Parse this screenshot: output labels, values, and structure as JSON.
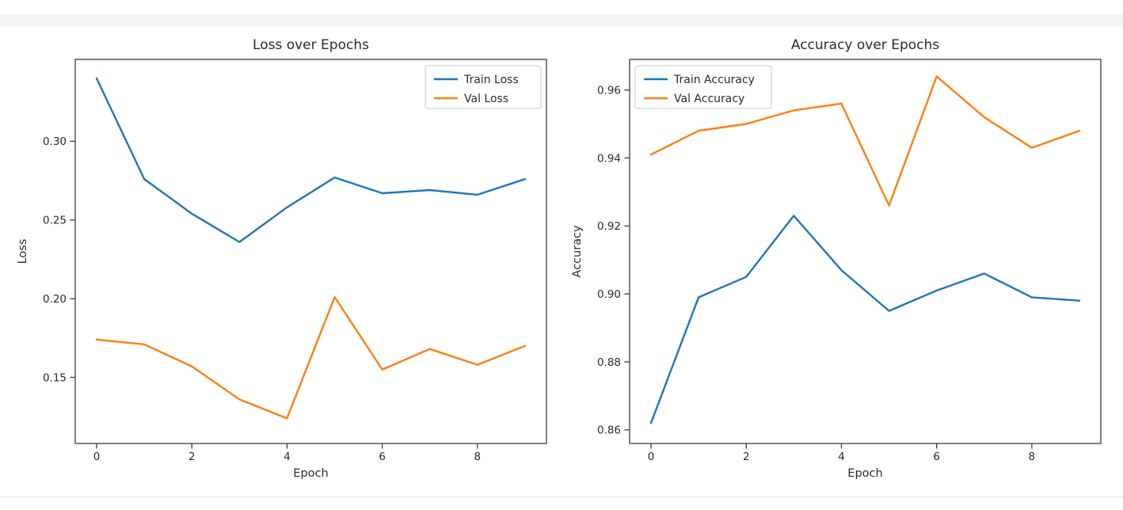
{
  "figure": {
    "background": "#ffffff",
    "top_strip_color": "#f4f5f6",
    "bottom_rule_color": "#e3e5e7",
    "spine_color": "#3c3c3c",
    "text_color": "#2b2b2b",
    "legend_border_color": "#cccccc"
  },
  "chart_data": [
    {
      "type": "line",
      "title": "Loss over Epochs",
      "xlabel": "Epoch",
      "ylabel": "Loss",
      "x": [
        0,
        1,
        2,
        3,
        4,
        5,
        6,
        7,
        8,
        9
      ],
      "series": [
        {
          "name": "Train Loss",
          "color": "#1f77b4",
          "values": [
            0.34,
            0.276,
            0.254,
            0.236,
            0.258,
            0.277,
            0.267,
            0.269,
            0.266,
            0.276
          ]
        },
        {
          "name": "Val Loss",
          "color": "#ff7f0e",
          "values": [
            0.174,
            0.171,
            0.157,
            0.136,
            0.124,
            0.201,
            0.155,
            0.168,
            0.158,
            0.17
          ]
        }
      ],
      "xticks": [
        {
          "v": 0,
          "label": "0"
        },
        {
          "v": 2,
          "label": "2"
        },
        {
          "v": 4,
          "label": "4"
        },
        {
          "v": 6,
          "label": "6"
        },
        {
          "v": 8,
          "label": "8"
        }
      ],
      "yticks": [
        {
          "v": 0.15,
          "label": "0.15"
        },
        {
          "v": 0.2,
          "label": "0.20"
        },
        {
          "v": 0.25,
          "label": "0.25"
        },
        {
          "v": 0.3,
          "label": "0.30"
        }
      ],
      "xlim": [
        -0.45,
        9.45
      ],
      "ylim": [
        0.108,
        0.352
      ],
      "grid": false,
      "legend": {
        "position": "top-right",
        "entries": [
          "Train Loss",
          "Val Loss"
        ]
      }
    },
    {
      "type": "line",
      "title": "Accuracy over Epochs",
      "xlabel": "Epoch",
      "ylabel": "Accuracy",
      "x": [
        0,
        1,
        2,
        3,
        4,
        5,
        6,
        7,
        8,
        9
      ],
      "series": [
        {
          "name": "Train Accuracy",
          "color": "#1f77b4",
          "values": [
            0.862,
            0.899,
            0.905,
            0.923,
            0.907,
            0.895,
            0.901,
            0.906,
            0.899,
            0.898
          ]
        },
        {
          "name": "Val Accuracy",
          "color": "#ff7f0e",
          "values": [
            0.941,
            0.948,
            0.95,
            0.954,
            0.956,
            0.926,
            0.964,
            0.952,
            0.943,
            0.948
          ]
        }
      ],
      "xticks": [
        {
          "v": 0,
          "label": "0"
        },
        {
          "v": 2,
          "label": "2"
        },
        {
          "v": 4,
          "label": "4"
        },
        {
          "v": 6,
          "label": "6"
        },
        {
          "v": 8,
          "label": "8"
        }
      ],
      "yticks": [
        {
          "v": 0.86,
          "label": "0.86"
        },
        {
          "v": 0.88,
          "label": "0.88"
        },
        {
          "v": 0.9,
          "label": "0.90"
        },
        {
          "v": 0.92,
          "label": "0.92"
        },
        {
          "v": 0.94,
          "label": "0.94"
        },
        {
          "v": 0.96,
          "label": "0.96"
        }
      ],
      "xlim": [
        -0.45,
        9.45
      ],
      "ylim": [
        0.856,
        0.969
      ],
      "grid": false,
      "legend": {
        "position": "top-left",
        "entries": [
          "Train Accuracy",
          "Val Accuracy"
        ]
      }
    }
  ]
}
